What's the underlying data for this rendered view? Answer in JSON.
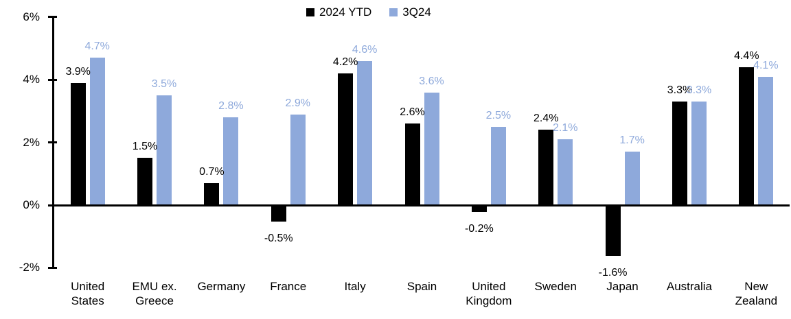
{
  "chart_data": {
    "type": "bar",
    "title": "",
    "xlabel": "",
    "ylabel": "",
    "grid": false,
    "legend_position": "top-center",
    "background_color": "#ffffff",
    "categories": [
      "United States",
      "EMU ex. Greece",
      "Germany",
      "France",
      "Italy",
      "Spain",
      "United Kingdom",
      "Sweden",
      "Japan",
      "Australia",
      "New Zealand"
    ],
    "series": [
      {
        "name": "2024 YTD",
        "color": "#000000",
        "values": [
          3.9,
          1.5,
          0.7,
          -0.5,
          4.2,
          2.6,
          -0.2,
          2.4,
          -1.6,
          3.3,
          4.4
        ],
        "labels": [
          "3.9%",
          "1.5%",
          "0.7%",
          "-0.5%",
          "4.2%",
          "2.6%",
          "-0.2%",
          "2.4%",
          "-1.6%",
          "3.3%",
          "4.4%"
        ]
      },
      {
        "name": "3Q24",
        "color": "#8EA9DB",
        "values": [
          4.7,
          3.5,
          2.8,
          2.9,
          4.6,
          3.6,
          2.5,
          2.1,
          1.7,
          3.3,
          4.1
        ],
        "labels": [
          "4.7%",
          "3.5%",
          "2.8%",
          "2.9%",
          "4.6%",
          "3.6%",
          "2.5%",
          "2.1%",
          "1.7%",
          "3.3%",
          "4.1%"
        ]
      }
    ],
    "y_axis": {
      "min": -2,
      "max": 6,
      "tick_labels": [
        "6%",
        "4%",
        "2%",
        "0%",
        "-2%"
      ],
      "tick_values": [
        6,
        4,
        2,
        0,
        -2
      ]
    }
  }
}
